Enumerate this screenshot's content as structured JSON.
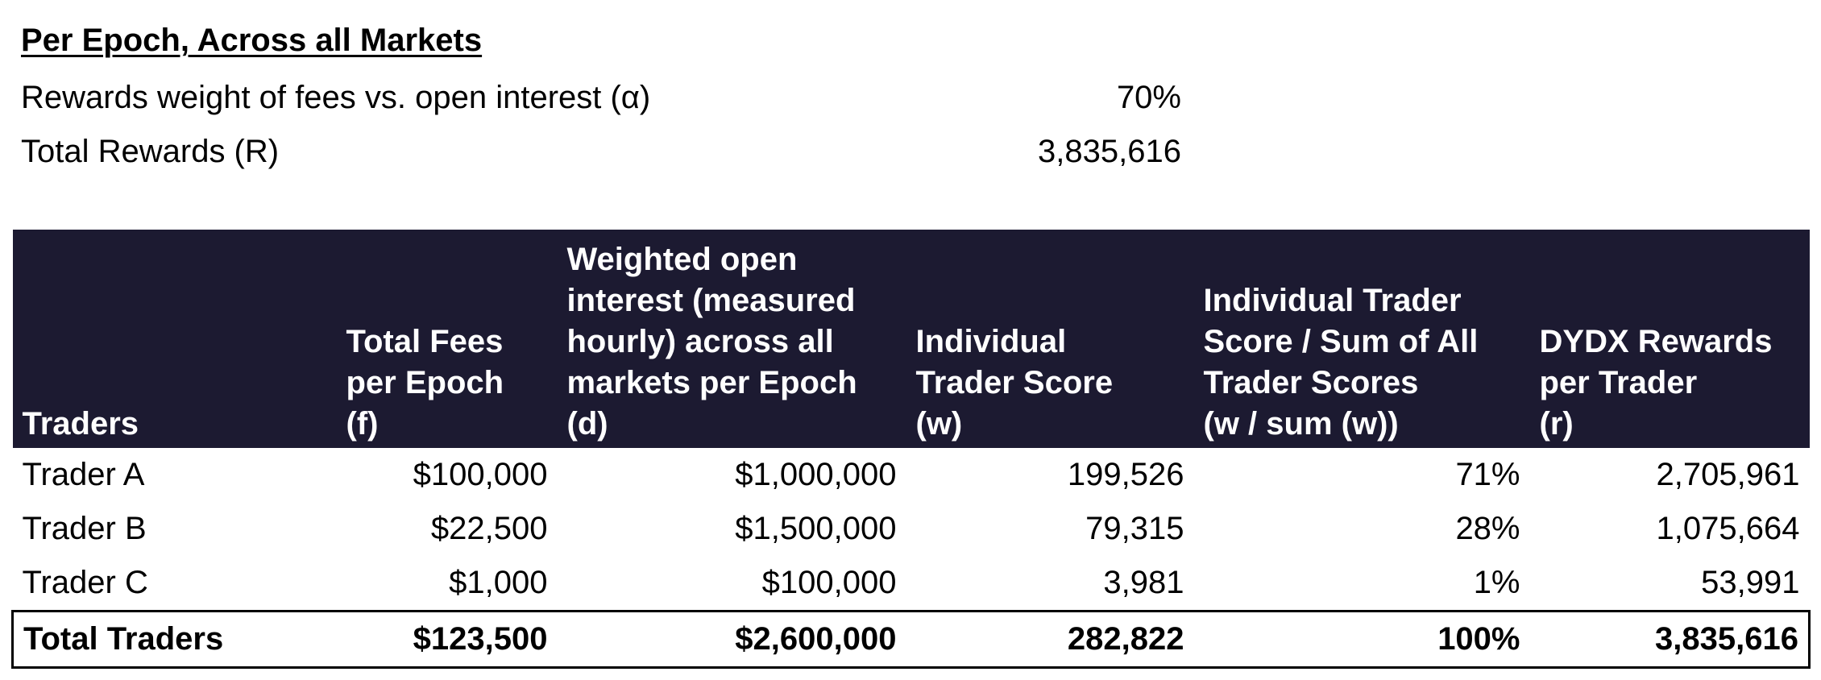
{
  "summary": {
    "heading": "Per Epoch, Across all Markets",
    "params": [
      {
        "label": "Rewards weight of fees vs. open interest (α)",
        "value": "70%"
      },
      {
        "label": "Total Rewards (R)",
        "value": "3,835,616"
      }
    ]
  },
  "table": {
    "headers": [
      [
        "Traders"
      ],
      [
        "Total Fees",
        "per Epoch",
        "(f)"
      ],
      [
        "Weighted open",
        "interest (measured",
        "hourly) across all",
        "markets per Epoch",
        "(d)"
      ],
      [
        "Individual",
        "Trader Score",
        "(w)"
      ],
      [
        "Individual Trader",
        "Score / Sum of All",
        "Trader Scores",
        "(w / sum (w))"
      ],
      [
        "DYDX Rewards",
        "per Trader",
        "(r)"
      ]
    ],
    "rows": [
      [
        "Trader A",
        "$100,000",
        "$1,000,000",
        "199,526",
        "71%",
        "2,705,961"
      ],
      [
        "Trader B",
        "$22,500",
        "$1,500,000",
        "79,315",
        "28%",
        "1,075,664"
      ],
      [
        "Trader C",
        "$1,000",
        "$100,000",
        "3,981",
        "1%",
        "53,991"
      ]
    ],
    "total": [
      "Total Traders",
      "$123,500",
      "$2,600,000",
      "282,822",
      "100%",
      "3,835,616"
    ]
  },
  "colors": {
    "header_background": "#1c1a31",
    "header_text": "#ffffff",
    "body_text": "#000000"
  }
}
